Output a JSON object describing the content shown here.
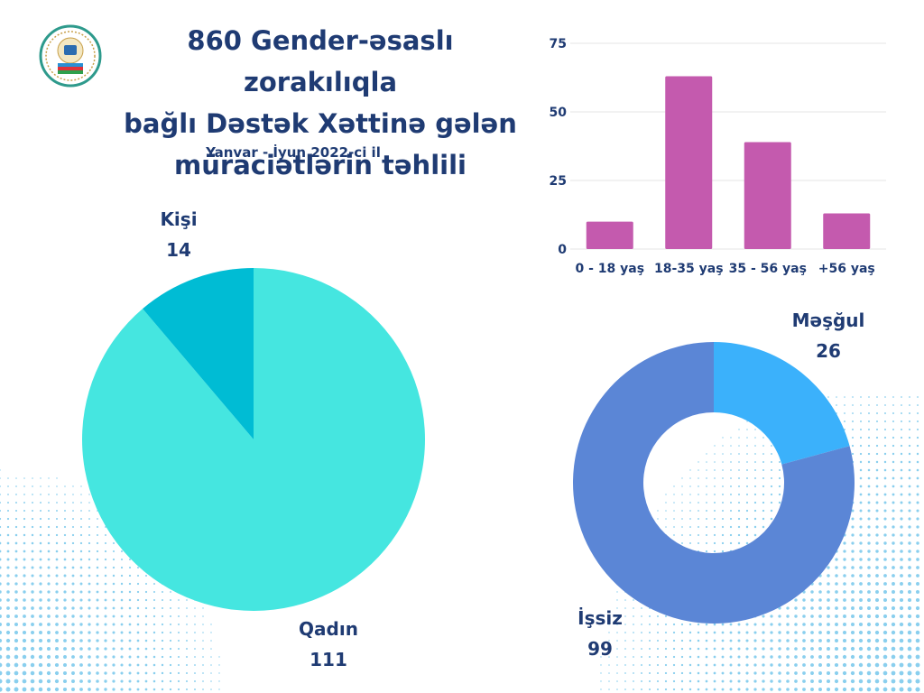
{
  "title_lines": [
    "860 Gender-əsaslı zorakılıqla",
    "bağlı Dəstək Xəttinə gələn",
    "müraciətlərin təhlili"
  ],
  "subtitle": "Yanvar - İyun 2022-ci il",
  "colors": {
    "title": "#1f3b73",
    "pie_female": "#45e6e0",
    "pie_male": "#00bcd4",
    "bar": "#c45aae",
    "donut_employed": "#3bb1fb",
    "donut_unemployed": "#5b86d6",
    "dots": "#2aa8e0"
  },
  "chart_data": [
    {
      "type": "pie",
      "title": "",
      "slices": [
        {
          "label": "Qadın",
          "value": 111
        },
        {
          "label": "Kişi",
          "value": 14
        }
      ]
    },
    {
      "type": "bar",
      "title": "",
      "categories": [
        "0 - 18 yaş",
        "18-35 yaş",
        "35 - 56 yaş",
        "+56 yaş"
      ],
      "values": [
        10,
        63,
        39,
        13
      ],
      "yticks": [
        "0",
        "25",
        "50",
        "75"
      ],
      "ylim": [
        0,
        75
      ],
      "grid": true,
      "xlabel": "",
      "ylabel": ""
    },
    {
      "type": "pie",
      "variant": "donut",
      "title": "",
      "slices": [
        {
          "label": "Məşğul",
          "value": 26
        },
        {
          "label": "İşsiz",
          "value": 99
        }
      ]
    }
  ]
}
